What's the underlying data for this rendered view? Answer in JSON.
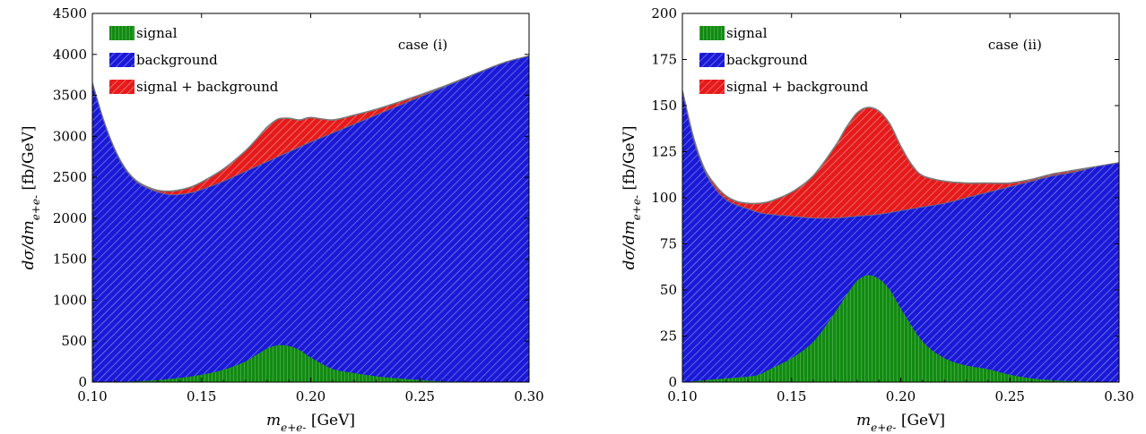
{
  "chart_data": [
    {
      "type": "area",
      "annotation": "case (i)",
      "xlabel": "m_{e+e-} [GeV]",
      "ylabel": "dσ/dm_{e+e-} [fb/GeV]",
      "xlim": [
        0.1,
        0.3
      ],
      "ylim": [
        0,
        4500
      ],
      "x_ticks": [
        "0.10",
        "0.15",
        "0.20",
        "0.25",
        "0.30"
      ],
      "y_ticks": [
        "0",
        "500",
        "1000",
        "1500",
        "2000",
        "2500",
        "3000",
        "3500",
        "4000",
        "4500"
      ],
      "legend_position": "top-left",
      "legend": [
        "signal",
        "background",
        "signal + background"
      ],
      "series": [
        {
          "name": "background",
          "color": "#1a1ad6",
          "x": [
            0.1,
            0.105,
            0.11,
            0.115,
            0.12,
            0.125,
            0.13,
            0.135,
            0.14,
            0.145,
            0.15,
            0.16,
            0.17,
            0.18,
            0.19,
            0.2,
            0.21,
            0.22,
            0.23,
            0.24,
            0.25,
            0.26,
            0.27,
            0.28,
            0.29,
            0.3
          ],
          "values": [
            3650,
            3200,
            2850,
            2600,
            2450,
            2370,
            2320,
            2290,
            2290,
            2310,
            2350,
            2450,
            2570,
            2690,
            2810,
            2930,
            3040,
            3150,
            3260,
            3370,
            3480,
            3590,
            3700,
            3810,
            3910,
            3980
          ]
        },
        {
          "name": "signal",
          "color": "#138a13",
          "x": [
            0.1,
            0.11,
            0.12,
            0.13,
            0.14,
            0.15,
            0.16,
            0.17,
            0.175,
            0.18,
            0.185,
            0.19,
            0.195,
            0.2,
            0.21,
            0.22,
            0.23,
            0.24,
            0.25,
            0.26,
            0.27,
            0.28,
            0.29,
            0.3
          ],
          "values": [
            0,
            5,
            10,
            25,
            50,
            90,
            150,
            250,
            330,
            410,
            450,
            440,
            390,
            300,
            160,
            110,
            70,
            45,
            25,
            10,
            5,
            2,
            1,
            0
          ]
        },
        {
          "name": "signal + background",
          "color": "#e51b1b",
          "x": [
            0.1,
            0.105,
            0.11,
            0.115,
            0.12,
            0.125,
            0.13,
            0.135,
            0.14,
            0.145,
            0.15,
            0.16,
            0.17,
            0.175,
            0.18,
            0.185,
            0.19,
            0.195,
            0.2,
            0.21,
            0.22,
            0.23,
            0.24,
            0.25,
            0.26,
            0.27,
            0.28,
            0.29,
            0.3
          ],
          "values": [
            3650,
            3205,
            2855,
            2610,
            2460,
            2385,
            2340,
            2330,
            2345,
            2380,
            2440,
            2600,
            2820,
            2960,
            3110,
            3210,
            3220,
            3200,
            3230,
            3200,
            3260,
            3330,
            3415,
            3505,
            3600,
            3705,
            3812,
            3911,
            3980
          ]
        }
      ]
    },
    {
      "type": "area",
      "annotation": "case (ii)",
      "xlabel": "m_{e+e-} [GeV]",
      "ylabel": "dσ/dm_{e+e-} [fb/GeV]",
      "xlim": [
        0.1,
        0.3
      ],
      "ylim": [
        0,
        200
      ],
      "x_ticks": [
        "0.10",
        "0.15",
        "0.20",
        "0.25",
        "0.30"
      ],
      "y_ticks": [
        "0",
        "25",
        "50",
        "75",
        "100",
        "125",
        "150",
        "175",
        "200"
      ],
      "legend_position": "top-left",
      "legend": [
        "signal",
        "background",
        "signal + background"
      ],
      "series": [
        {
          "name": "background",
          "color": "#1a1ad6",
          "x": [
            0.1,
            0.105,
            0.11,
            0.115,
            0.12,
            0.125,
            0.13,
            0.135,
            0.14,
            0.15,
            0.16,
            0.17,
            0.18,
            0.19,
            0.2,
            0.21,
            0.22,
            0.23,
            0.24,
            0.25,
            0.26,
            0.27,
            0.28,
            0.29,
            0.3
          ],
          "values": [
            158,
            132,
            115,
            105,
            99,
            96,
            94,
            92,
            91,
            90,
            89,
            89,
            90,
            91,
            93,
            95,
            97,
            100,
            103,
            106,
            109,
            112,
            114,
            117,
            119
          ]
        },
        {
          "name": "signal",
          "color": "#138a13",
          "x": [
            0.1,
            0.11,
            0.12,
            0.13,
            0.135,
            0.14,
            0.15,
            0.16,
            0.17,
            0.175,
            0.18,
            0.185,
            0.19,
            0.195,
            0.2,
            0.21,
            0.22,
            0.23,
            0.24,
            0.25,
            0.26,
            0.27,
            0.28,
            0.29,
            0.3
          ],
          "values": [
            0,
            1,
            2,
            3,
            4,
            7,
            13,
            22,
            38,
            47,
            55,
            58,
            56,
            50,
            40,
            22,
            13,
            9,
            7,
            4,
            2,
            1,
            0.5,
            0.2,
            0
          ]
        },
        {
          "name": "signal + background",
          "color": "#e51b1b",
          "x": [
            0.1,
            0.105,
            0.11,
            0.115,
            0.12,
            0.125,
            0.13,
            0.135,
            0.14,
            0.15,
            0.16,
            0.17,
            0.175,
            0.18,
            0.185,
            0.19,
            0.195,
            0.2,
            0.205,
            0.21,
            0.22,
            0.23,
            0.24,
            0.25,
            0.26,
            0.27,
            0.28,
            0.29,
            0.3
          ],
          "values": [
            158,
            133,
            116,
            107,
            101,
            98,
            97,
            97,
            98,
            103,
            112,
            128,
            138,
            146,
            149,
            147,
            140,
            128,
            118,
            112,
            109,
            108,
            108,
            108,
            110,
            113,
            115,
            117,
            119
          ]
        }
      ]
    }
  ]
}
